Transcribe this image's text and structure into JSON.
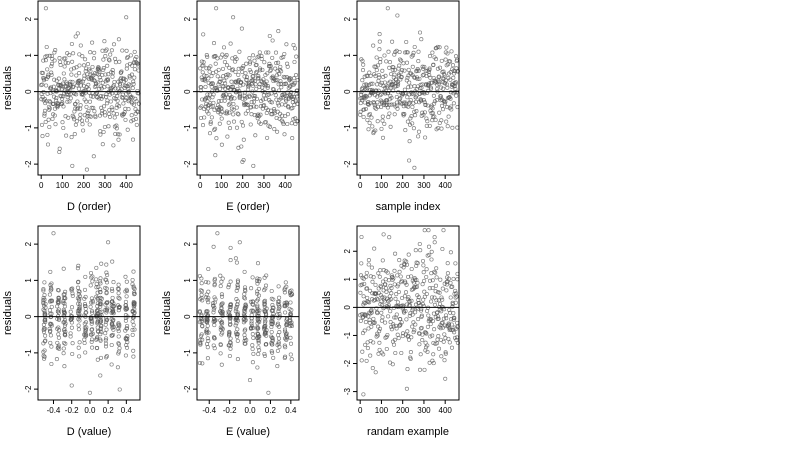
{
  "chart_data": [
    {
      "type": "scatter",
      "xlabel": "D (order)",
      "ylabel": "residuals",
      "x_ticks": [
        "0",
        "100",
        "200",
        "300",
        "400"
      ],
      "y_ticks": [
        "-2",
        "-1",
        "0",
        "1",
        "2"
      ],
      "xlim": [
        -15,
        465
      ],
      "ylim": [
        -2.3,
        2.5
      ],
      "reference_line_y": 0,
      "distribution": {
        "x_kind": "index",
        "n": 460,
        "x_range": [
          0,
          460
        ],
        "y_center": 0.05,
        "y_spread": 0.6
      },
      "outliers": [
        [
          22,
          2.3
        ],
        [
          400,
          2.05
        ],
        [
          215,
          -2.15
        ],
        [
          290,
          -1.45
        ]
      ]
    },
    {
      "type": "scatter",
      "xlabel": "E (order)",
      "ylabel": "residuals",
      "x_ticks": [
        "0",
        "100",
        "200",
        "300",
        "400"
      ],
      "y_ticks": [
        "-2",
        "-1",
        "0",
        "1",
        "2"
      ],
      "xlim": [
        -15,
        465
      ],
      "ylim": [
        -2.3,
        2.5
      ],
      "reference_line_y": 0,
      "distribution": {
        "x_kind": "index",
        "n": 460,
        "x_range": [
          0,
          460
        ],
        "y_center": 0.05,
        "y_spread": 0.6
      },
      "outliers": [
        [
          75,
          2.3
        ],
        [
          155,
          2.05
        ],
        [
          250,
          -2.05
        ],
        [
          180,
          -1.55
        ]
      ]
    },
    {
      "type": "scatter",
      "xlabel": "sample index",
      "ylabel": "residuals",
      "x_ticks": [
        "0",
        "100",
        "200",
        "300",
        "400"
      ],
      "y_ticks": [
        "-2",
        "-1",
        "0",
        "1",
        "2"
      ],
      "xlim": [
        -15,
        465
      ],
      "ylim": [
        -2.3,
        2.5
      ],
      "reference_line_y": 0,
      "distribution": {
        "x_kind": "index",
        "n": 460,
        "x_range": [
          0,
          460
        ],
        "y_center": 0.05,
        "y_spread": 0.6
      },
      "outliers": [
        [
          130,
          2.3
        ],
        [
          175,
          2.1
        ],
        [
          230,
          -1.9
        ],
        [
          255,
          -2.1
        ]
      ]
    },
    {
      "type": "scatter",
      "xlabel": "D (value)",
      "ylabel": "residuals",
      "x_ticks": [
        "-0.4",
        "-0.2",
        "0.0",
        "0.2",
        "0.4"
      ],
      "x_tick_values": [
        -0.4,
        -0.2,
        0.0,
        0.2,
        0.4
      ],
      "y_ticks": [
        "-2",
        "-1",
        "0",
        "1",
        "2"
      ],
      "xlim": [
        -0.57,
        0.55
      ],
      "ylim": [
        -2.3,
        2.5
      ],
      "reference_line_y": 0,
      "distribution": {
        "x_kind": "clustered",
        "n": 460,
        "x_clusters": [
          -0.5,
          -0.43,
          -0.35,
          -0.28,
          -0.2,
          -0.12,
          -0.05,
          0.02,
          0.08,
          0.12,
          0.18,
          0.25,
          0.32,
          0.4,
          0.48
        ],
        "y_center": 0.0,
        "y_spread": 0.6
      },
      "outliers": [
        [
          -0.4,
          2.3
        ],
        [
          0.2,
          2.05
        ],
        [
          -0.2,
          -1.9
        ],
        [
          0.0,
          -2.1
        ]
      ]
    },
    {
      "type": "scatter",
      "xlabel": "E (value)",
      "ylabel": "residuals",
      "x_ticks": [
        "-0.4",
        "-0.2",
        "0.0",
        "0.2",
        "0.4"
      ],
      "x_tick_values": [
        -0.4,
        -0.2,
        0.0,
        0.2,
        0.4
      ],
      "y_ticks": [
        "-2",
        "-1",
        "0",
        "1",
        "2"
      ],
      "xlim": [
        -0.52,
        0.48
      ],
      "ylim": [
        -2.3,
        2.5
      ],
      "reference_line_y": 0,
      "distribution": {
        "x_kind": "clustered",
        "n": 460,
        "x_clusters": [
          -0.48,
          -0.42,
          -0.35,
          -0.28,
          -0.2,
          -0.13,
          -0.05,
          0.02,
          0.08,
          0.15,
          0.22,
          0.28,
          0.35,
          0.4
        ],
        "y_center": 0.0,
        "y_spread": 0.6
      },
      "outliers": [
        [
          -0.32,
          2.3
        ],
        [
          -0.1,
          2.05
        ],
        [
          0.18,
          -2.1
        ],
        [
          0.0,
          -1.75
        ]
      ]
    },
    {
      "type": "scatter",
      "xlabel": "randam example",
      "ylabel": "residuals",
      "x_ticks": [
        "0",
        "100",
        "200",
        "300",
        "400"
      ],
      "y_ticks": [
        "-3",
        "-2",
        "-1",
        "0",
        "1",
        "2"
      ],
      "xlim": [
        -15,
        465
      ],
      "ylim": [
        -3.3,
        2.9
      ],
      "reference_line_y": 0,
      "distribution": {
        "x_kind": "index",
        "n": 460,
        "x_range": [
          0,
          460
        ],
        "y_center": 0.0,
        "y_spread": 1.0
      },
      "outliers": [
        [
          15,
          -3.1
        ],
        [
          110,
          2.6
        ],
        [
          220,
          -2.9
        ],
        [
          350,
          2.5
        ]
      ]
    }
  ]
}
